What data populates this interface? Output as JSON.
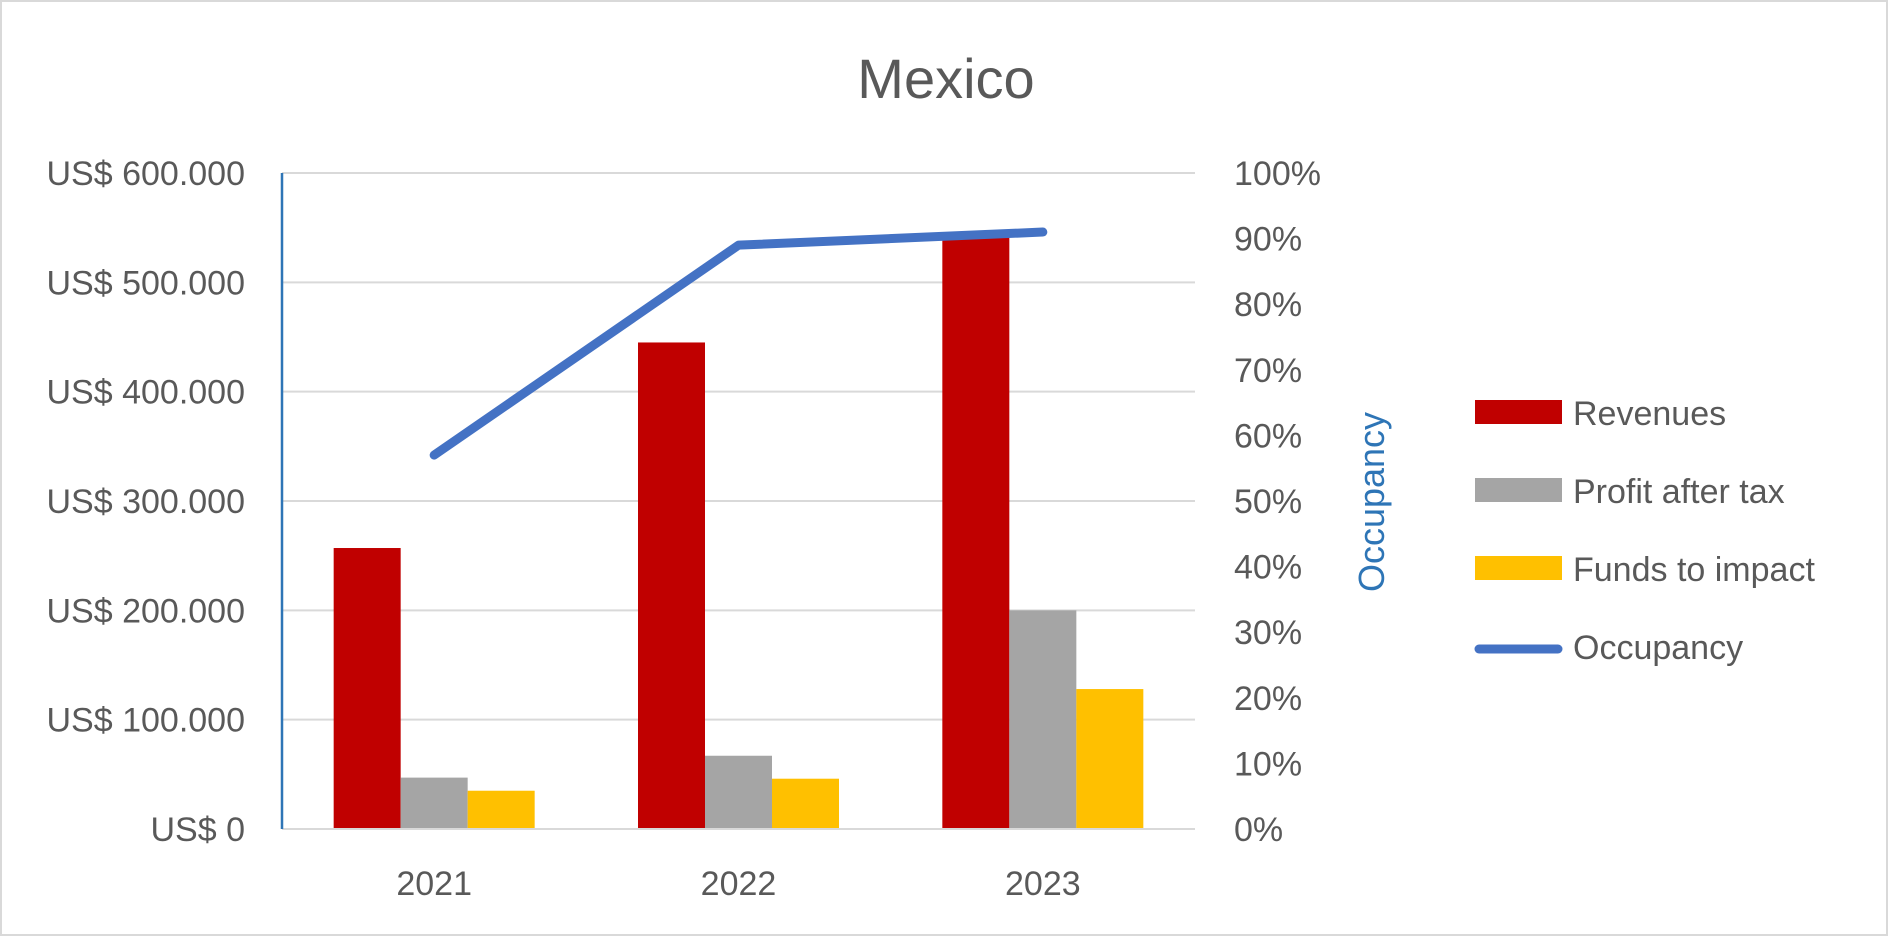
{
  "chart_data": {
    "type": "bar",
    "title": "Mexico",
    "categories": [
      "2021",
      "2022",
      "2023"
    ],
    "series": [
      {
        "name": "Revenues",
        "type": "bar",
        "axis": "left",
        "color": "#c00000",
        "values": [
          257000,
          445000,
          546000
        ]
      },
      {
        "name": "Profit after tax",
        "type": "bar",
        "axis": "left",
        "color": "#a5a5a5",
        "values": [
          47000,
          67000,
          200000
        ]
      },
      {
        "name": "Funds to impact",
        "type": "bar",
        "axis": "left",
        "color": "#ffc000",
        "values": [
          35000,
          46000,
          128000
        ]
      },
      {
        "name": "Occupancy",
        "type": "line",
        "axis": "right",
        "color": "#4472c4",
        "values": [
          0.57,
          0.89,
          0.91
        ]
      }
    ],
    "y_left": {
      "ylim": [
        0,
        600000
      ],
      "ticks": [
        0,
        100000,
        200000,
        300000,
        400000,
        500000,
        600000
      ],
      "tick_labels": [
        "US$ 0",
        "US$ 100.000",
        "US$ 200.000",
        "US$ 300.000",
        "US$ 400.000",
        "US$ 500.000",
        "US$ 600.000"
      ]
    },
    "y_right": {
      "label": "Occupancy",
      "ylim": [
        0,
        1
      ],
      "ticks": [
        0,
        0.1,
        0.2,
        0.3,
        0.4,
        0.5,
        0.6,
        0.7,
        0.8,
        0.9,
        1.0
      ],
      "tick_labels": [
        "0%",
        "10%",
        "20%",
        "30%",
        "40%",
        "50%",
        "60%",
        "70%",
        "80%",
        "90%",
        "100%"
      ]
    },
    "grid": true,
    "legend_position": "right"
  }
}
